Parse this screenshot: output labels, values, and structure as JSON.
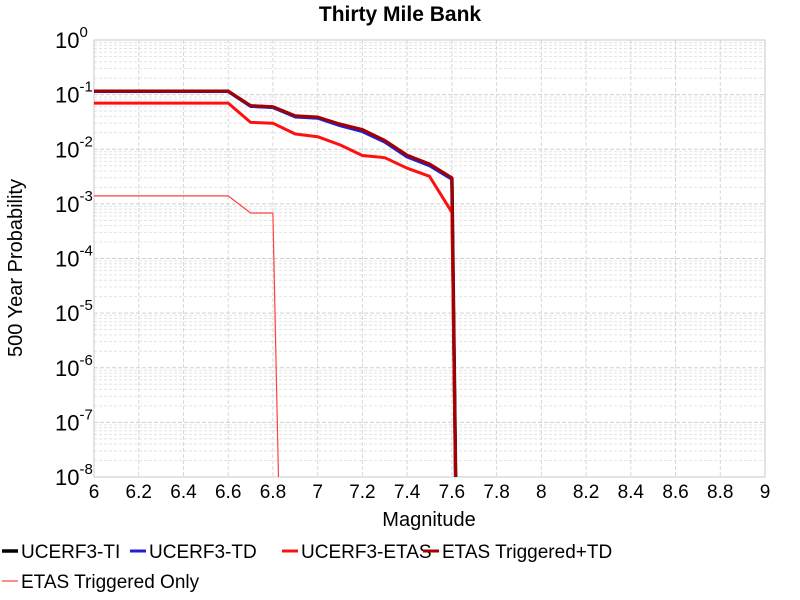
{
  "chart_data": {
    "type": "line",
    "title": "Thirty Mile Bank",
    "xlabel": "Magnitude",
    "ylabel": "500 Year Probability",
    "xlim": [
      6,
      9
    ],
    "ylim": [
      1e-08,
      1
    ],
    "yscale": "log",
    "grid": true,
    "legend_position": "bottom",
    "x_ticks": [
      "6",
      "6.2",
      "6.4",
      "6.6",
      "6.8",
      "7",
      "7.2",
      "7.4",
      "7.6",
      "7.8",
      "8",
      "8.2",
      "8.4",
      "8.6",
      "8.8",
      "9"
    ],
    "y_ticks": [
      {
        "base": "10",
        "exp": "0"
      },
      {
        "base": "10",
        "exp": "-1"
      },
      {
        "base": "10",
        "exp": "-2"
      },
      {
        "base": "10",
        "exp": "-3"
      },
      {
        "base": "10",
        "exp": "-4"
      },
      {
        "base": "10",
        "exp": "-5"
      },
      {
        "base": "10",
        "exp": "-6"
      },
      {
        "base": "10",
        "exp": "-7"
      },
      {
        "base": "10",
        "exp": "-8"
      }
    ],
    "series": [
      {
        "name": "UCERF3-TI",
        "color": "#000000",
        "width": 3.5,
        "x": [
          6.0,
          6.6,
          6.7,
          6.8,
          6.9,
          7.0,
          7.1,
          7.2,
          7.3,
          7.4,
          7.5,
          7.6,
          7.62
        ],
        "y": [
          0.115,
          0.115,
          0.062,
          0.059,
          0.04,
          0.038,
          0.028,
          0.022,
          0.014,
          0.0075,
          0.0052,
          0.0029,
          1e-09
        ]
      },
      {
        "name": "UCERF3-TD",
        "color": "#1f1fd6",
        "width": 3,
        "x": [
          6.0,
          6.6,
          6.7,
          6.8,
          6.9,
          7.0,
          7.1,
          7.2,
          7.3,
          7.4,
          7.5,
          7.6,
          7.62
        ],
        "y": [
          0.114,
          0.114,
          0.061,
          0.058,
          0.039,
          0.037,
          0.027,
          0.021,
          0.0135,
          0.0072,
          0.005,
          0.0028,
          1e-09
        ]
      },
      {
        "name": "UCERF3-ETAS",
        "color": "#ff1010",
        "width": 3,
        "x": [
          6.0,
          6.6,
          6.7,
          6.8,
          6.9,
          7.0,
          7.1,
          7.2,
          7.3,
          7.4,
          7.5,
          7.6,
          7.62
        ],
        "y": [
          0.07,
          0.07,
          0.031,
          0.03,
          0.019,
          0.017,
          0.012,
          0.0077,
          0.007,
          0.0045,
          0.0032,
          0.0007,
          1e-09
        ]
      },
      {
        "name": "ETAS Triggered+TD",
        "color": "#a30000",
        "width": 3,
        "x": [
          6.0,
          6.6,
          6.7,
          6.8,
          6.9,
          7.0,
          7.1,
          7.2,
          7.3,
          7.4,
          7.5,
          7.6,
          7.62
        ],
        "y": [
          0.116,
          0.116,
          0.063,
          0.06,
          0.041,
          0.039,
          0.029,
          0.023,
          0.0145,
          0.0078,
          0.0054,
          0.003,
          1e-09
        ]
      },
      {
        "name": "ETAS Triggered Only",
        "color": "#ff4040",
        "width": 1.2,
        "x": [
          6.0,
          6.6,
          6.7,
          6.8,
          6.83
        ],
        "y": [
          0.0014,
          0.0014,
          0.00068,
          0.00068,
          1e-09
        ]
      }
    ]
  }
}
